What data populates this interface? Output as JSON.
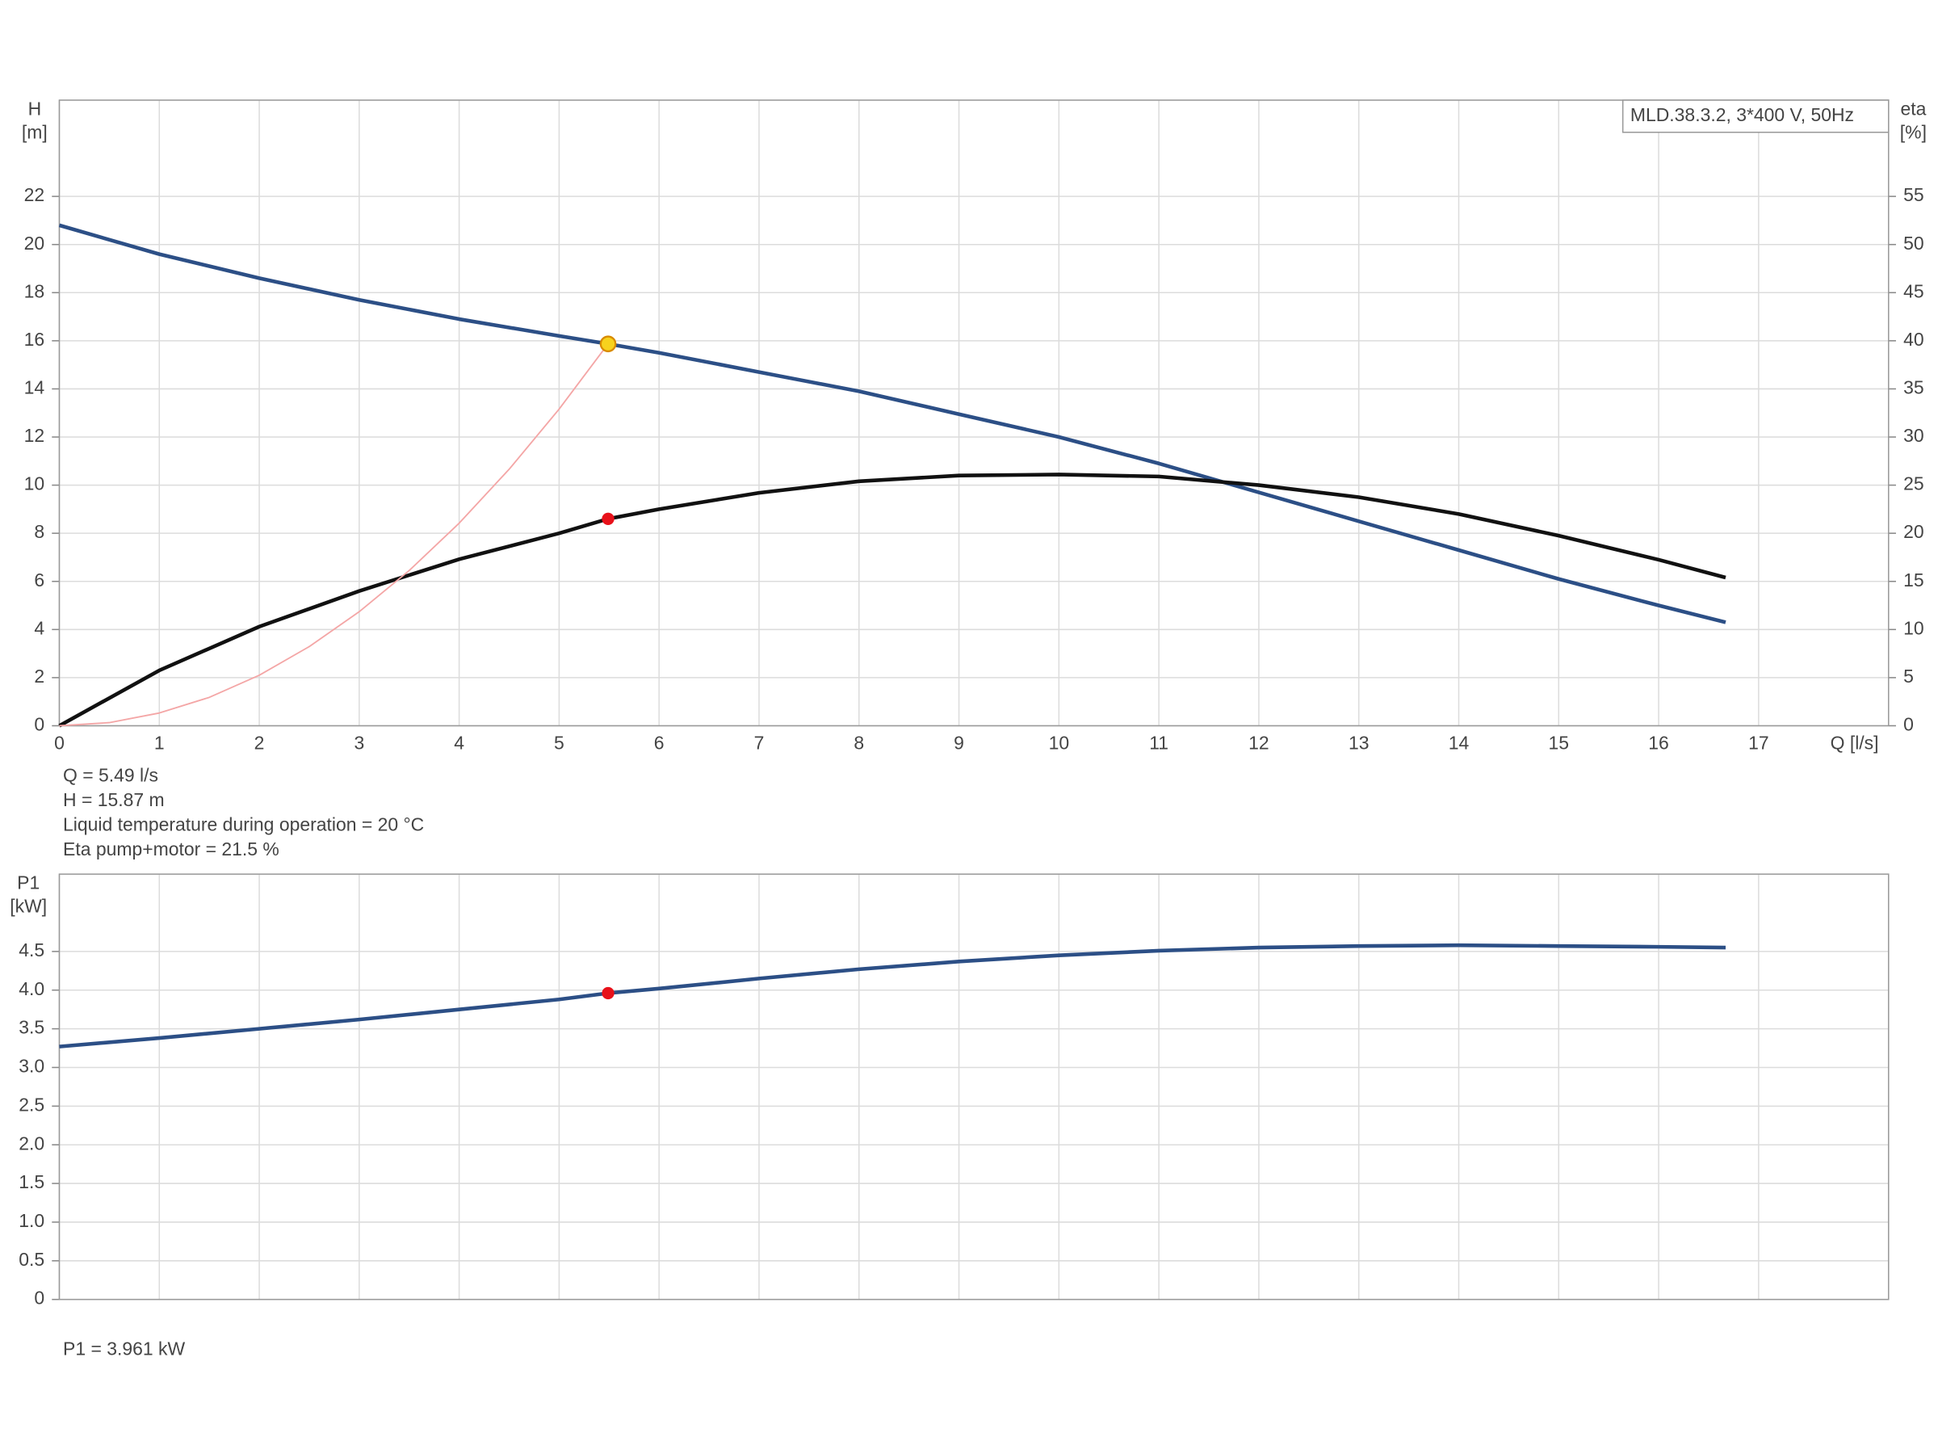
{
  "chart_data": [
    {
      "type": "line",
      "ylabel": [
        "H",
        "[m]"
      ],
      "y2label": [
        "eta",
        "[%]"
      ],
      "xlabel": "Q [l/s]",
      "legend": "MLD.38.3.2, 3*400 V, 50Hz",
      "xlim": [
        0,
        18.3
      ],
      "xticks": [
        0,
        1,
        2,
        3,
        4,
        5,
        6,
        7,
        8,
        9,
        10,
        11,
        12,
        13,
        14,
        15,
        16,
        17
      ],
      "ylim": [
        0,
        26
      ],
      "yticks": [
        0,
        2,
        4,
        6,
        8,
        10,
        12,
        14,
        16,
        18,
        20,
        22
      ],
      "y2lim": [
        0,
        65
      ],
      "y2ticks": [
        0,
        5,
        10,
        15,
        20,
        25,
        30,
        35,
        40,
        45,
        50,
        55
      ],
      "grid": true,
      "x": [
        0,
        1,
        2,
        3,
        4,
        5,
        5.49,
        6,
        7,
        8,
        9,
        10,
        11,
        12,
        13,
        14,
        15,
        16,
        16.67
      ],
      "series": [
        {
          "color": "#2c4f86",
          "values": [
            20.8,
            19.6,
            18.6,
            17.7,
            16.9,
            16.2,
            15.87,
            15.5,
            14.7,
            13.9,
            12.95,
            12.0,
            10.9,
            9.7,
            8.5,
            7.3,
            6.1,
            5.0,
            4.3
          ]
        },
        {
          "color": "#111111",
          "axis": "y2",
          "values": [
            0,
            5.75,
            10.3,
            14,
            17.3,
            20,
            21.5,
            22.5,
            24.2,
            25.4,
            26,
            26.1,
            25.9,
            25,
            23.75,
            22,
            19.75,
            17.25,
            15.4
          ]
        },
        {
          "color": "#f4a6a6",
          "x": [
            0,
            0.5,
            1,
            1.5,
            2,
            2.5,
            3,
            3.5,
            4,
            4.5,
            5,
            5.49
          ],
          "values": [
            0,
            0.13,
            0.53,
            1.18,
            2.1,
            3.29,
            4.74,
            6.45,
            8.42,
            10.66,
            13.16,
            15.87
          ]
        }
      ],
      "points": [
        {
          "x": 5.49,
          "y": 15.87,
          "color": "#f7d21e"
        },
        {
          "x": 5.49,
          "y": 21.5,
          "axis": "y2",
          "color": "#e8111a"
        }
      ],
      "annotations": [
        "Q = 5.49 l/s",
        "H = 15.87 m",
        "Liquid temperature during operation = 20 °C",
        "Eta pump+motor = 21.5 %"
      ]
    },
    {
      "type": "line",
      "ylabel": [
        "P1",
        "[kW]"
      ],
      "xlim": [
        0,
        18.3
      ],
      "ylim": [
        0,
        5.5
      ],
      "yticks": [
        0,
        {
          "value": 0.5,
          "label": "0.5"
        },
        {
          "value": 1,
          "label": "1.0"
        },
        {
          "value": 1.5,
          "label": "1.5"
        },
        {
          "value": 2,
          "label": "2.0"
        },
        {
          "value": 2.5,
          "label": "2.5"
        },
        {
          "value": 3,
          "label": "3.0"
        },
        {
          "value": 3.5,
          "label": "3.5"
        },
        {
          "value": 4,
          "label": "4.0"
        },
        {
          "value": 4.5,
          "label": "4.5"
        }
      ],
      "grid": true,
      "x": [
        0,
        1,
        2,
        3,
        4,
        5,
        5.49,
        6,
        7,
        8,
        9,
        10,
        11,
        12,
        13,
        14,
        15,
        16,
        16.67
      ],
      "series": [
        {
          "color": "#2c4f86",
          "values": [
            3.27,
            3.38,
            3.5,
            3.62,
            3.75,
            3.88,
            3.961,
            4.02,
            4.15,
            4.27,
            4.37,
            4.45,
            4.51,
            4.55,
            4.57,
            4.58,
            4.57,
            4.56,
            4.55
          ]
        }
      ],
      "points": [
        {
          "x": 5.49,
          "y": 3.961,
          "color": "#e8111a"
        }
      ],
      "annotations": [
        "P1 = 3.961 kW"
      ]
    }
  ]
}
